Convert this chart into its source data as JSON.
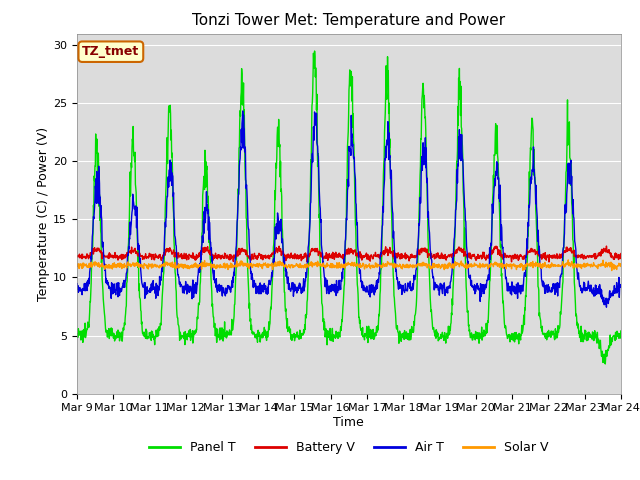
{
  "title": "Tonzi Tower Met: Temperature and Power",
  "xlabel": "Time",
  "ylabel": "Temperature (C) / Power (V)",
  "ylim": [
    0,
    31
  ],
  "yticks": [
    0,
    5,
    10,
    15,
    20,
    25,
    30
  ],
  "date_labels": [
    "Mar 9",
    "Mar 10",
    "Mar 11",
    "Mar 12",
    "Mar 13",
    "Mar 14",
    "Mar 15",
    "Mar 16",
    "Mar 17",
    "Mar 18",
    "Mar 19",
    "Mar 20",
    "Mar 21",
    "Mar 22",
    "Mar 23",
    "Mar 24"
  ],
  "legend_labels": [
    "Panel T",
    "Battery V",
    "Air T",
    "Solar V"
  ],
  "legend_colors": [
    "#00dd00",
    "#dd0000",
    "#0000dd",
    "#ff9900"
  ],
  "annotation_text": "TZ_tmet",
  "annotation_bg": "#ffffcc",
  "annotation_border": "#cc6600",
  "plot_bg": "#dcdcdc",
  "title_fontsize": 11,
  "axis_fontsize": 9,
  "tick_fontsize": 8
}
